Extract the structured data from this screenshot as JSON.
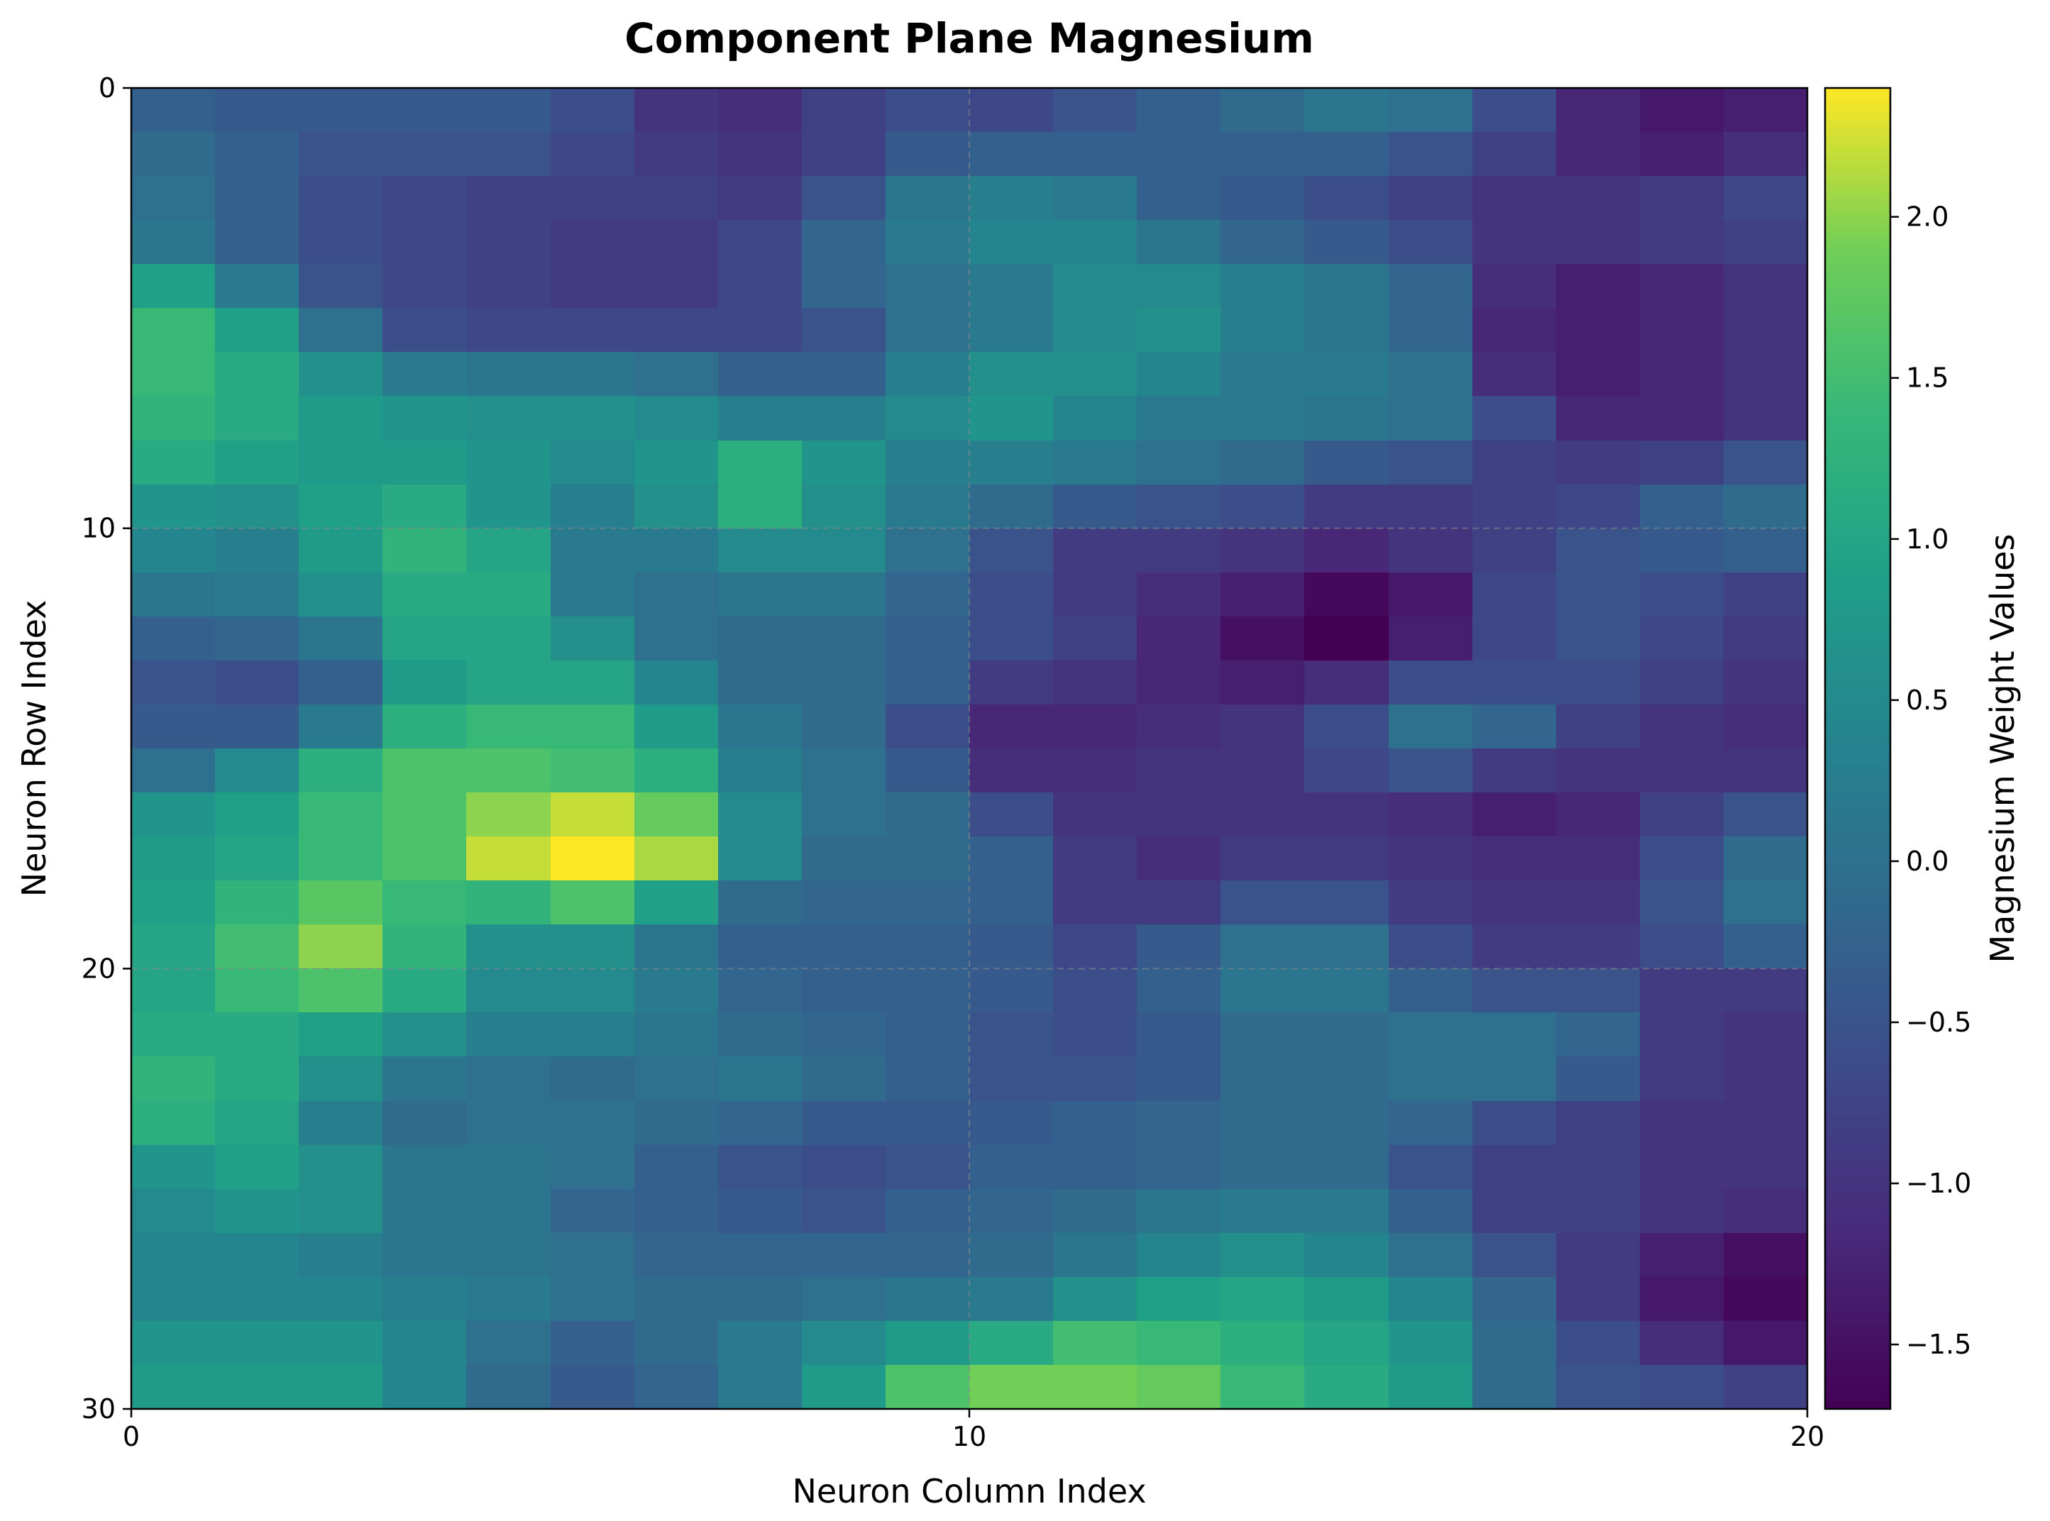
{
  "chart_data": {
    "type": "heatmap",
    "title": "Component Plane Magnesium",
    "xlabel": "Neuron Column Index",
    "ylabel": "Neuron Row Index",
    "colorbar_label": "Magnesium Weight Values",
    "colormap": "viridis",
    "vmin": -1.7,
    "vmax": 2.4,
    "xlim": [
      0,
      20
    ],
    "ylim": [
      30,
      0
    ],
    "xticks": [
      0,
      10,
      20
    ],
    "xtick_labels": [
      "0",
      "10",
      "20"
    ],
    "yticks": [
      0,
      10,
      20,
      30
    ],
    "ytick_labels": [
      "0",
      "10",
      "20",
      "30"
    ],
    "colorbar_ticks": [
      -1.5,
      -1.0,
      -0.5,
      0.0,
      0.5,
      1.0,
      1.5,
      2.0
    ],
    "colorbar_tick_labels": [
      "−1.5",
      "−1.0",
      "−0.5",
      "0.0",
      "0.5",
      "1.0",
      "1.5",
      "2.0"
    ],
    "grid": true,
    "n_rows": 30,
    "n_cols": 20,
    "values": [
      [
        -0.3,
        -0.4,
        -0.4,
        -0.4,
        -0.4,
        -0.6,
        -1.0,
        -1.1,
        -0.8,
        -0.6,
        -0.7,
        -0.5,
        -0.3,
        -0.1,
        0.1,
        0.0,
        -0.6,
        -1.2,
        -1.4,
        -1.3
      ],
      [
        -0.1,
        -0.3,
        -0.5,
        -0.5,
        -0.5,
        -0.7,
        -0.9,
        -1.0,
        -0.8,
        -0.4,
        -0.3,
        -0.3,
        -0.3,
        -0.3,
        -0.3,
        -0.5,
        -0.8,
        -1.2,
        -1.3,
        -1.1
      ],
      [
        0.0,
        -0.3,
        -0.6,
        -0.7,
        -0.8,
        -0.8,
        -0.8,
        -0.9,
        -0.5,
        0.1,
        0.3,
        0.2,
        -0.3,
        -0.4,
        -0.6,
        -0.8,
        -1.0,
        -1.0,
        -0.9,
        -0.7
      ],
      [
        0.1,
        -0.3,
        -0.6,
        -0.7,
        -0.8,
        -0.9,
        -0.9,
        -0.7,
        -0.2,
        0.2,
        0.4,
        0.4,
        0.1,
        -0.2,
        -0.4,
        -0.6,
        -1.0,
        -1.0,
        -0.9,
        -0.8
      ],
      [
        0.9,
        0.2,
        -0.5,
        -0.7,
        -0.8,
        -0.9,
        -0.9,
        -0.7,
        -0.2,
        0.0,
        0.2,
        0.5,
        0.5,
        0.3,
        0.1,
        -0.2,
        -1.1,
        -1.3,
        -1.2,
        -1.0
      ],
      [
        1.4,
        0.9,
        0.0,
        -0.6,
        -0.7,
        -0.7,
        -0.7,
        -0.7,
        -0.5,
        0.0,
        0.2,
        0.5,
        0.6,
        0.3,
        0.1,
        -0.2,
        -1.2,
        -1.3,
        -1.2,
        -1.0
      ],
      [
        1.4,
        1.1,
        0.6,
        0.2,
        0.1,
        0.1,
        0.0,
        -0.3,
        -0.3,
        0.3,
        0.6,
        0.6,
        0.4,
        0.2,
        0.2,
        0.0,
        -1.1,
        -1.3,
        -1.2,
        -1.0
      ],
      [
        1.3,
        1.1,
        0.8,
        0.7,
        0.6,
        0.6,
        0.5,
        0.3,
        0.3,
        0.5,
        0.7,
        0.4,
        0.2,
        0.2,
        0.1,
        0.0,
        -0.6,
        -1.2,
        -1.2,
        -1.0
      ],
      [
        1.1,
        0.9,
        0.8,
        0.8,
        0.7,
        0.5,
        0.7,
        1.2,
        0.7,
        0.3,
        0.3,
        0.2,
        0.0,
        -0.1,
        -0.4,
        -0.5,
        -0.8,
        -0.9,
        -0.8,
        -0.5
      ],
      [
        0.7,
        0.6,
        0.9,
        1.1,
        0.7,
        0.3,
        0.6,
        1.2,
        0.6,
        0.2,
        -0.1,
        -0.4,
        -0.5,
        -0.6,
        -0.9,
        -0.9,
        -0.8,
        -0.7,
        -0.3,
        -0.1
      ],
      [
        0.4,
        0.3,
        0.8,
        1.3,
        1.0,
        0.2,
        0.2,
        0.5,
        0.5,
        0.0,
        -0.5,
        -0.9,
        -0.9,
        -1.0,
        -1.2,
        -1.0,
        -0.8,
        -0.5,
        -0.4,
        -0.3
      ],
      [
        0.1,
        0.2,
        0.6,
        1.1,
        1.1,
        0.2,
        0.0,
        0.1,
        0.1,
        -0.2,
        -0.6,
        -0.9,
        -1.1,
        -1.3,
        -1.6,
        -1.4,
        -0.7,
        -0.5,
        -0.6,
        -0.8
      ],
      [
        -0.3,
        -0.2,
        0.1,
        1.0,
        1.0,
        0.6,
        0.0,
        -0.1,
        -0.1,
        -0.3,
        -0.6,
        -0.8,
        -1.2,
        -1.5,
        -1.7,
        -1.3,
        -0.7,
        -0.5,
        -0.7,
        -0.9
      ],
      [
        -0.5,
        -0.6,
        -0.3,
        0.8,
        1.0,
        1.0,
        0.4,
        -0.1,
        -0.1,
        -0.3,
        -0.9,
        -1.0,
        -1.2,
        -1.3,
        -1.1,
        -0.6,
        -0.6,
        -0.6,
        -0.8,
        -1.0
      ],
      [
        -0.4,
        -0.4,
        0.2,
        1.2,
        1.4,
        1.4,
        0.8,
        0.1,
        -0.1,
        -0.6,
        -1.2,
        -1.2,
        -1.1,
        -1.0,
        -0.6,
        0.0,
        -0.2,
        -0.8,
        -1.0,
        -1.1
      ],
      [
        0.0,
        0.5,
        1.2,
        1.6,
        1.6,
        1.5,
        1.2,
        0.3,
        0.0,
        -0.4,
        -1.1,
        -1.1,
        -1.0,
        -1.0,
        -0.7,
        -0.5,
        -0.9,
        -1.0,
        -1.0,
        -1.0
      ],
      [
        0.7,
        0.9,
        1.4,
        1.6,
        2.0,
        2.2,
        1.8,
        0.5,
        0.0,
        -0.1,
        -0.6,
        -1.0,
        -1.0,
        -1.0,
        -1.0,
        -1.1,
        -1.3,
        -1.2,
        -0.8,
        -0.5
      ],
      [
        0.8,
        1.0,
        1.4,
        1.6,
        2.2,
        2.4,
        2.1,
        0.5,
        -0.1,
        -0.1,
        -0.3,
        -0.9,
        -1.1,
        -0.9,
        -0.9,
        -1.0,
        -1.1,
        -1.1,
        -0.6,
        -0.1
      ],
      [
        0.9,
        1.3,
        1.7,
        1.4,
        1.3,
        1.6,
        0.9,
        -0.1,
        -0.2,
        -0.2,
        -0.3,
        -0.9,
        -0.9,
        -0.5,
        -0.5,
        -0.9,
        -1.0,
        -1.0,
        -0.5,
        0.0
      ],
      [
        1.0,
        1.5,
        2.0,
        1.3,
        0.6,
        0.6,
        0.1,
        -0.3,
        -0.3,
        -0.3,
        -0.4,
        -0.7,
        -0.4,
        0.0,
        0.0,
        -0.6,
        -0.9,
        -0.9,
        -0.6,
        -0.3
      ],
      [
        1.0,
        1.4,
        1.6,
        1.1,
        0.5,
        0.5,
        0.2,
        -0.2,
        -0.3,
        -0.3,
        -0.4,
        -0.6,
        -0.3,
        0.1,
        0.1,
        -0.3,
        -0.5,
        -0.5,
        -0.9,
        -0.9
      ],
      [
        1.1,
        1.1,
        0.9,
        0.6,
        0.3,
        0.3,
        0.1,
        -0.1,
        -0.2,
        -0.3,
        -0.5,
        -0.6,
        -0.4,
        -0.1,
        -0.1,
        0.0,
        0.0,
        -0.2,
        -0.9,
        -1.0
      ],
      [
        1.3,
        1.1,
        0.6,
        0.1,
        0.0,
        -0.1,
        0.0,
        0.1,
        -0.1,
        -0.3,
        -0.5,
        -0.5,
        -0.4,
        -0.1,
        -0.1,
        0.0,
        0.0,
        -0.4,
        -0.9,
        -1.0
      ],
      [
        1.2,
        1.0,
        0.3,
        -0.1,
        0.0,
        0.0,
        -0.1,
        -0.2,
        -0.4,
        -0.4,
        -0.4,
        -0.3,
        -0.2,
        -0.1,
        -0.1,
        -0.2,
        -0.6,
        -0.8,
        -1.0,
        -1.0
      ],
      [
        0.7,
        0.9,
        0.6,
        0.1,
        0.1,
        0.0,
        -0.3,
        -0.5,
        -0.6,
        -0.5,
        -0.3,
        -0.3,
        -0.2,
        -0.1,
        -0.1,
        -0.5,
        -0.8,
        -0.8,
        -1.0,
        -1.0
      ],
      [
        0.5,
        0.7,
        0.6,
        0.1,
        0.1,
        -0.2,
        -0.3,
        -0.4,
        -0.5,
        -0.3,
        -0.2,
        -0.1,
        0.1,
        0.2,
        0.2,
        -0.3,
        -0.8,
        -0.8,
        -1.0,
        -1.1
      ],
      [
        0.4,
        0.4,
        0.3,
        0.1,
        0.1,
        0.0,
        -0.2,
        -0.2,
        -0.2,
        -0.2,
        -0.1,
        0.1,
        0.4,
        0.6,
        0.4,
        0.0,
        -0.5,
        -0.9,
        -1.3,
        -1.5
      ],
      [
        0.4,
        0.4,
        0.4,
        0.3,
        0.2,
        0.0,
        -0.1,
        -0.1,
        0.0,
        0.1,
        0.2,
        0.6,
        0.9,
        1.0,
        0.8,
        0.4,
        -0.2,
        -0.9,
        -1.4,
        -1.6
      ],
      [
        0.7,
        0.7,
        0.7,
        0.4,
        0.0,
        -0.3,
        -0.1,
        0.2,
        0.5,
        0.8,
        1.1,
        1.5,
        1.4,
        1.2,
        1.0,
        0.7,
        -0.1,
        -0.6,
        -1.1,
        -1.4
      ],
      [
        0.8,
        0.8,
        0.8,
        0.4,
        -0.1,
        -0.4,
        -0.2,
        0.2,
        0.8,
        1.6,
        1.9,
        1.9,
        1.8,
        1.4,
        1.1,
        0.8,
        -0.1,
        -0.5,
        -0.6,
        -0.8
      ]
    ]
  }
}
